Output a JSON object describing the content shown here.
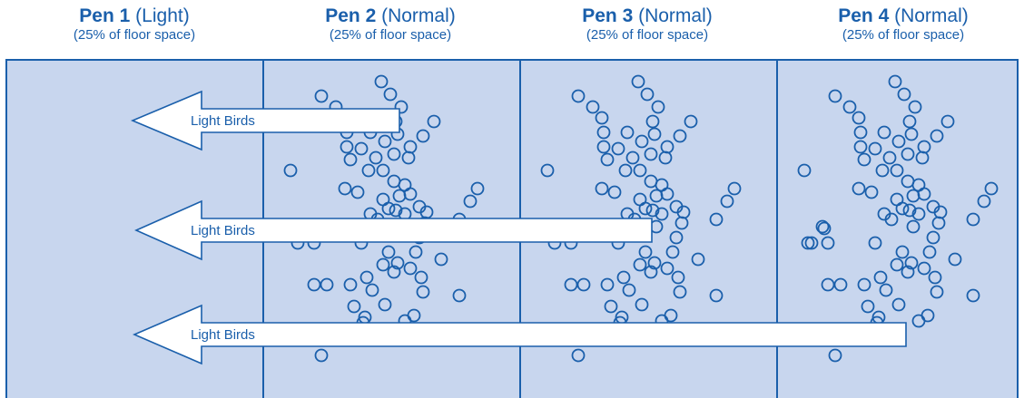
{
  "pens": [
    {
      "name": "Pen 1",
      "type": "(Light)",
      "space": "(25% of floor space)"
    },
    {
      "name": "Pen 2",
      "type": "(Normal)",
      "space": "(25% of floor space)"
    },
    {
      "name": "Pen 3",
      "type": "(Normal)",
      "space": "(25% of floor space)"
    },
    {
      "name": "Pen 4",
      "type": "(Normal)",
      "space": "(25% of floor space)"
    }
  ],
  "arrows": [
    {
      "label": "Light Birds"
    },
    {
      "label": "Light Birds"
    },
    {
      "label": "Light Birds"
    }
  ],
  "colors": {
    "floor": "#c8d6ee",
    "line": "#1a5fab",
    "arrow_fill": "#ffffff"
  }
}
